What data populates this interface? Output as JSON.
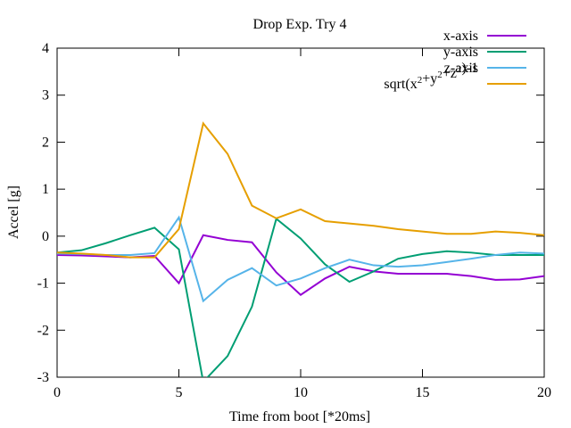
{
  "chart_data": {
    "type": "line",
    "title": "Drop Exp. Try 4",
    "xlabel": "Time from boot [*20ms]",
    "ylabel": "Accel [g]",
    "xlim": [
      0,
      20
    ],
    "ylim": [
      -3,
      4
    ],
    "xticks": [
      0,
      5,
      10,
      15,
      20
    ],
    "yticks": [
      -3,
      -2,
      -1,
      0,
      1,
      2,
      3,
      4
    ],
    "grid": false,
    "legend_position": "top-right",
    "x": [
      0,
      1,
      2,
      3,
      4,
      5,
      6,
      7,
      8,
      9,
      10,
      11,
      12,
      13,
      14,
      15,
      16,
      17,
      18,
      19,
      20
    ],
    "series": [
      {
        "name": "x-axis",
        "color": "#9400d3",
        "values": [
          -0.4,
          -0.41,
          -0.43,
          -0.45,
          -0.42,
          -1.0,
          0.02,
          -0.08,
          -0.13,
          -0.77,
          -1.25,
          -0.9,
          -0.65,
          -0.75,
          -0.8,
          -0.8,
          -0.8,
          -0.85,
          -0.93,
          -0.92,
          -0.85
        ]
      },
      {
        "name": "y-axis",
        "color": "#009e73",
        "values": [
          -0.35,
          -0.3,
          -0.15,
          0.02,
          0.18,
          -0.28,
          -3.1,
          -2.55,
          -1.5,
          0.37,
          -0.05,
          -0.6,
          -0.97,
          -0.75,
          -0.48,
          -0.38,
          -0.32,
          -0.35,
          -0.4,
          -0.4,
          -0.4
        ]
      },
      {
        "name": "z-axis",
        "color": "#56b4e9",
        "values": [
          -0.37,
          -0.38,
          -0.4,
          -0.4,
          -0.36,
          0.4,
          -1.38,
          -0.93,
          -0.68,
          -1.05,
          -0.9,
          -0.68,
          -0.5,
          -0.62,
          -0.65,
          -0.62,
          -0.55,
          -0.48,
          -0.4,
          -0.35,
          -0.37
        ]
      },
      {
        "name": "sqrt(x2+y2+z2)-1",
        "color": "#e69f00",
        "legend_parts": [
          [
            "sqrt(x",
            ""
          ],
          [
            "2",
            "sup"
          ],
          [
            "+y",
            ""
          ],
          [
            "2",
            "sup"
          ],
          [
            "+z",
            ""
          ],
          [
            "2",
            "sup"
          ],
          [
            ")-1",
            ""
          ]
        ],
        "values": [
          -0.35,
          -0.37,
          -0.4,
          -0.45,
          -0.45,
          0.15,
          2.4,
          1.75,
          0.65,
          0.38,
          0.57,
          0.32,
          0.27,
          0.22,
          0.15,
          0.1,
          0.05,
          0.05,
          0.1,
          0.07,
          0.02
        ]
      }
    ]
  }
}
